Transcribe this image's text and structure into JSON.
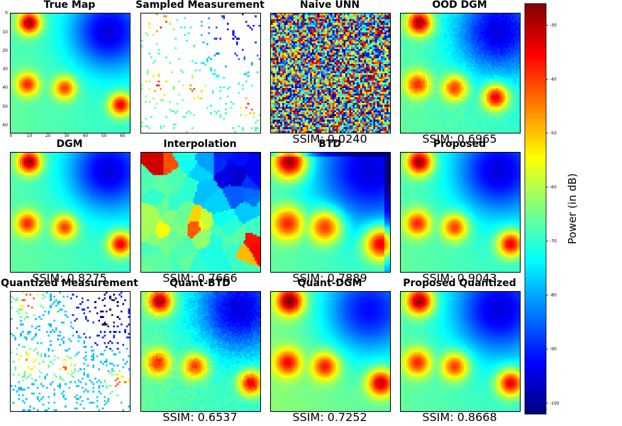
{
  "chart_data": {
    "type": "heatmap",
    "grid_size": 64,
    "colormap": "jet",
    "panels": [
      {
        "title": "True Map",
        "ssim": null,
        "kind": "smooth",
        "blur": 1.0,
        "axes": {
          "xticks": [
            "0",
            "10",
            "20",
            "30",
            "40",
            "50",
            "60"
          ],
          "yticks": [
            "0",
            "10",
            "20",
            "30",
            "40",
            "50",
            "60"
          ]
        }
      },
      {
        "title": "Sampled Measurement",
        "ssim": null,
        "kind": "sampled"
      },
      {
        "title": "Naive UNN",
        "ssim": "SSIM: 0.0240",
        "kind": "noise"
      },
      {
        "title": "OOD DGM",
        "ssim": "SSIM: 0.6965",
        "kind": "ood"
      },
      {
        "title": "DGM",
        "ssim": "SSIM: 0.8275",
        "kind": "smooth",
        "blur": 1.05
      },
      {
        "title": "Interpolation",
        "ssim": "SSIM: 0.7666",
        "kind": "interp"
      },
      {
        "title": "BTD",
        "ssim": "SSIM: 0.7889",
        "kind": "btd"
      },
      {
        "title": "Proposed",
        "ssim": "SSIM: 0.9043",
        "kind": "smooth",
        "blur": 1.15
      },
      {
        "title": "Quantized Measurement",
        "ssim": null,
        "kind": "quantized"
      },
      {
        "title": "Quant-BTD",
        "ssim": "SSIM: 0.6537",
        "kind": "qbtd"
      },
      {
        "title": "Quant-DGM",
        "ssim": "SSIM: 0.7252",
        "kind": "qdgm"
      },
      {
        "title": "Proposed Quantized",
        "ssim": "SSIM: 0.8668",
        "kind": "smooth",
        "blur": 1.2
      }
    ],
    "sources": [
      {
        "x": 10,
        "y": 5,
        "power_db": -28
      },
      {
        "x": 9,
        "y": 38,
        "power_db": -38
      },
      {
        "x": 29,
        "y": 40,
        "power_db": -40
      },
      {
        "x": 59,
        "y": 49,
        "power_db": -34
      }
    ],
    "background_db": -72,
    "low_region": {
      "x": 52,
      "y": 10,
      "power_db": -96
    },
    "colorbar": {
      "label": "Power (in dB)",
      "ticks": [
        "-30",
        "-40",
        "-50",
        "-60",
        "-70",
        "-80",
        "-90",
        "-100"
      ],
      "range": [
        -102,
        -26
      ]
    }
  }
}
